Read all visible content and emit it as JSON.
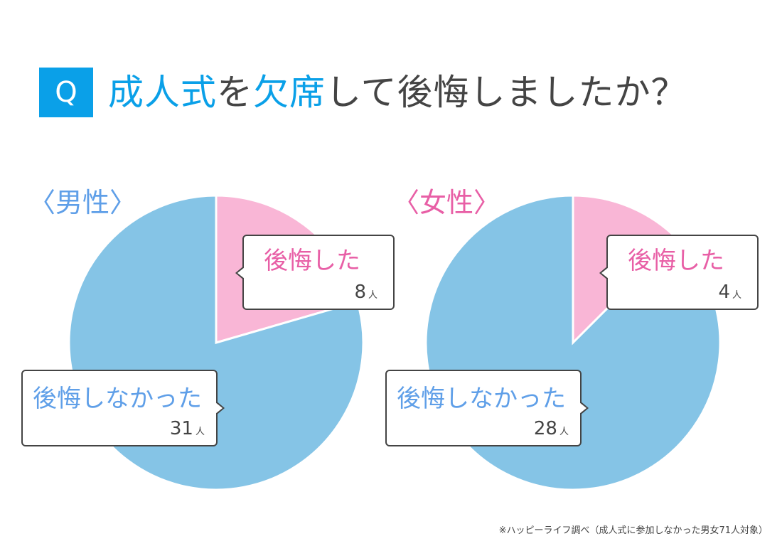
{
  "title": {
    "q": "Q",
    "parts": [
      "成人式",
      "を",
      "欠席",
      "して後悔しましたか？"
    ]
  },
  "colors": {
    "regretted": "#f9b6d6",
    "not_regretted": "#85c4e6",
    "accent": "#0aa0e8"
  },
  "chart_data": [
    {
      "type": "pie",
      "title": "〈男性〉",
      "series": [
        {
          "name": "後悔した",
          "value": 8,
          "unit": "人"
        },
        {
          "name": "後悔しなかった",
          "value": 31,
          "unit": "人"
        }
      ]
    },
    {
      "type": "pie",
      "title": "〈女性〉",
      "series": [
        {
          "name": "後悔した",
          "value": 4,
          "unit": "人"
        },
        {
          "name": "後悔しなかった",
          "value": 28,
          "unit": "人"
        }
      ]
    }
  ],
  "footnote": "※ハッピーライフ調べ（成人式に参加しなかった男女71人対象）"
}
